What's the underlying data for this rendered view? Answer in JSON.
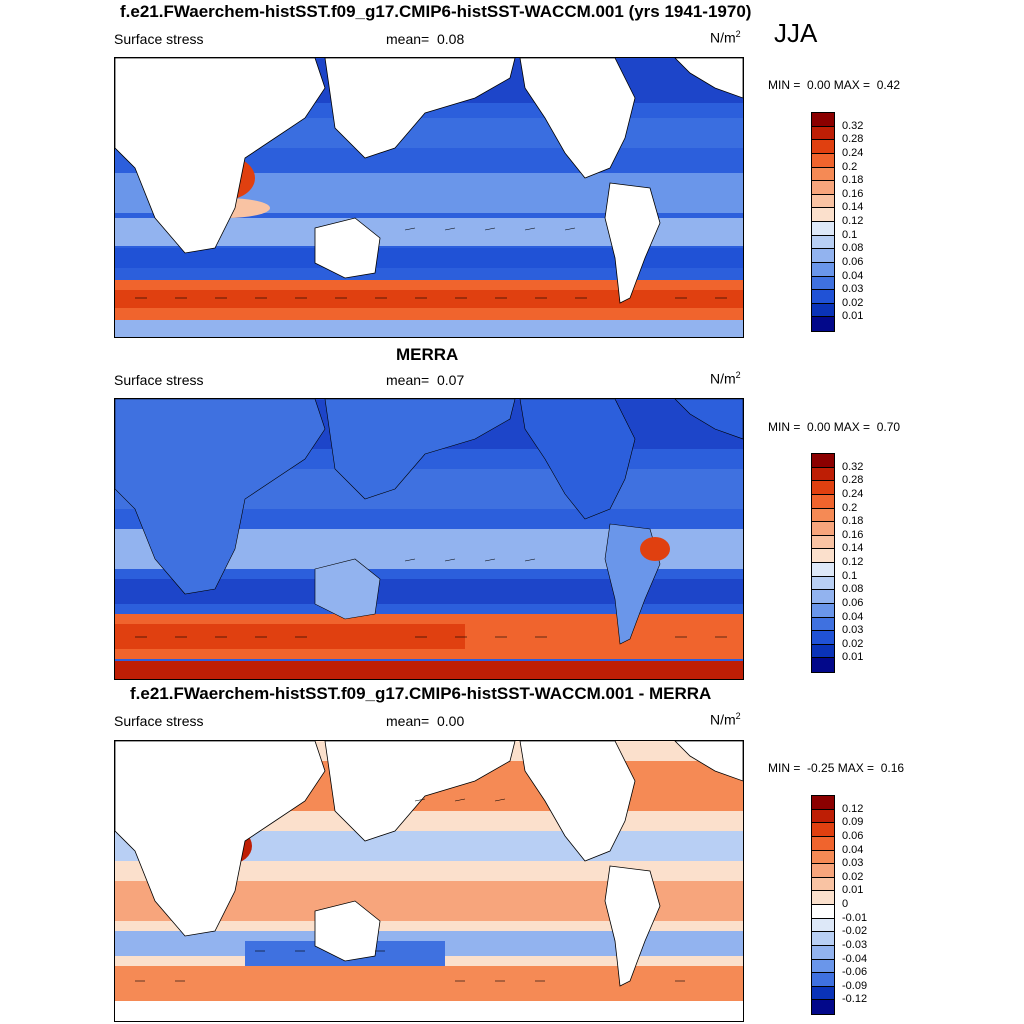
{
  "season": "JJA",
  "panels": [
    {
      "id": "model",
      "title": "f.e21.FWaerchem-histSST.f09_g17.CMIP6-histSST-WACCM.001 (yrs 1941-1970)",
      "left_label": "Surface stress",
      "mean_label": "mean=",
      "mean_value": "0.08",
      "units_base": "N/m",
      "units_exp": "2",
      "min_label": "MIN =",
      "min_value": "0.00",
      "max_label": "MAX =",
      "max_value": "0.42",
      "levels": [
        "0.32",
        "0.28",
        "0.24",
        "0.2",
        "0.18",
        "0.16",
        "0.14",
        "0.12",
        "0.1",
        "0.08",
        "0.06",
        "0.04",
        "0.03",
        "0.02",
        "0.01"
      ],
      "colors": [
        "#8b0000",
        "#be1e05",
        "#e04010",
        "#f0642d",
        "#f58a55",
        "#f7a57c",
        "#f9c3a3",
        "#fbe0cc",
        "#dde8f8",
        "#b8cff4",
        "#92b3ef",
        "#6a96ea",
        "#3f71e0",
        "#2052d6",
        "#0a33b8",
        "#02088a"
      ]
    },
    {
      "id": "obs",
      "title": "MERRA",
      "left_label": "Surface stress",
      "mean_label": "mean=",
      "mean_value": "0.07",
      "units_base": "N/m",
      "units_exp": "2",
      "min_label": "MIN =",
      "min_value": "0.00",
      "max_label": "MAX =",
      "max_value": "0.70",
      "levels": [
        "0.32",
        "0.28",
        "0.24",
        "0.2",
        "0.18",
        "0.16",
        "0.14",
        "0.12",
        "0.1",
        "0.08",
        "0.06",
        "0.04",
        "0.03",
        "0.02",
        "0.01"
      ],
      "colors": [
        "#8b0000",
        "#be1e05",
        "#e04010",
        "#f0642d",
        "#f58a55",
        "#f7a57c",
        "#f9c3a3",
        "#fbe0cc",
        "#dde8f8",
        "#b8cff4",
        "#92b3ef",
        "#6a96ea",
        "#3f71e0",
        "#2052d6",
        "#0a33b8",
        "#02088a"
      ]
    },
    {
      "id": "diff",
      "title": "f.e21.FWaerchem-histSST.f09_g17.CMIP6-histSST-WACCM.001 - MERRA",
      "left_label": "Surface stress",
      "mean_label": "mean=",
      "mean_value": "0.00",
      "units_base": "N/m",
      "units_exp": "2",
      "min_label": "MIN =",
      "min_value": "-0.25",
      "max_label": "MAX =",
      "max_value": "0.16",
      "levels": [
        "0.12",
        "0.09",
        "0.06",
        "0.04",
        "0.03",
        "0.02",
        "0.01",
        "0",
        "-0.01",
        "-0.02",
        "-0.03",
        "-0.04",
        "-0.06",
        "-0.09",
        "-0.12"
      ],
      "colors": [
        "#8b0000",
        "#be1e05",
        "#e04010",
        "#f0642d",
        "#f58a55",
        "#f7a57c",
        "#f9c3a3",
        "#fbe0cc",
        "#ffffff",
        "#dde8f8",
        "#b8cff4",
        "#92b3ef",
        "#6a96ea",
        "#3f71e0",
        "#0a33b8",
        "#02088a"
      ]
    }
  ],
  "land_color": "#ffffff",
  "coast_color": "#000000"
}
